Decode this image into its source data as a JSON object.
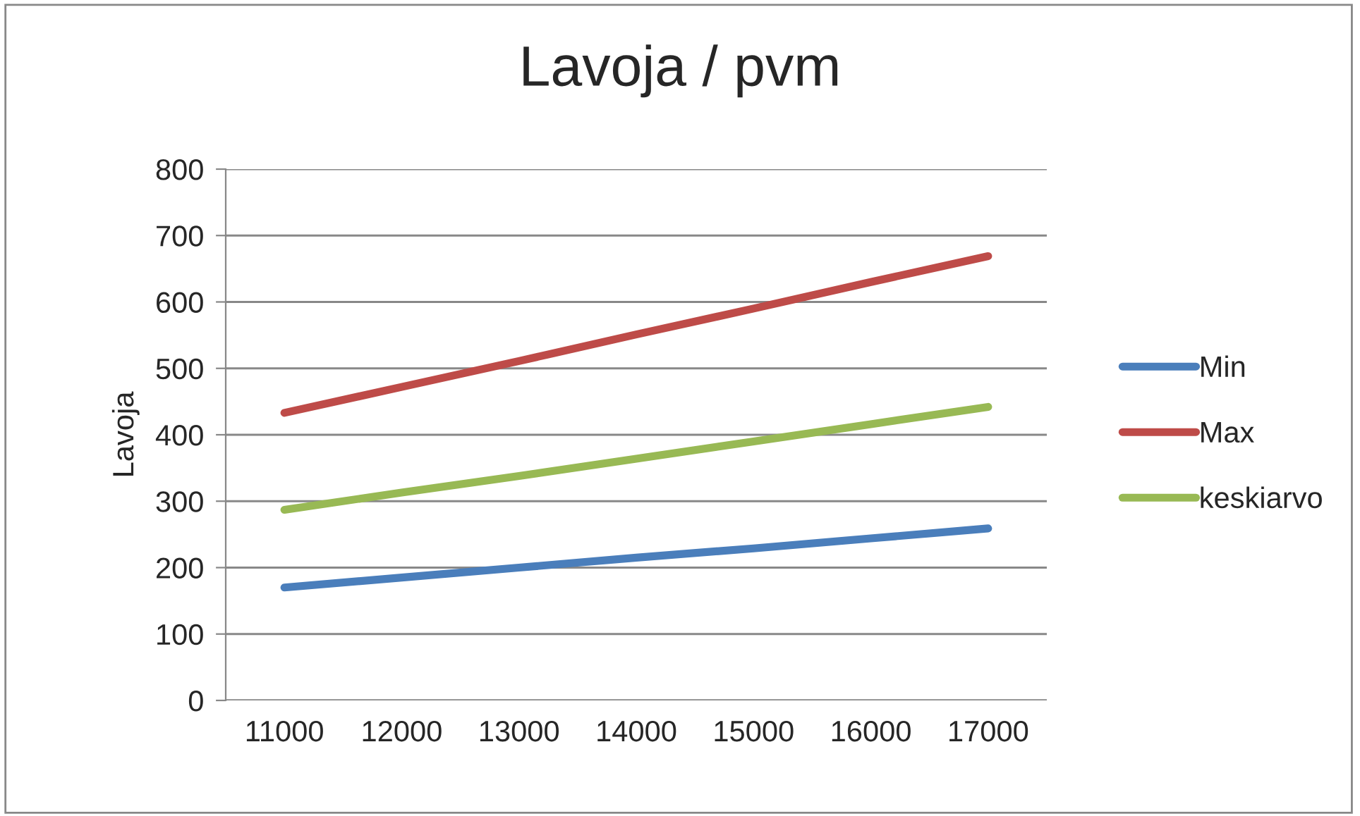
{
  "chart_data": {
    "type": "line",
    "title": "Lavoja / pvm",
    "ylabel": "Lavoja",
    "categories": [
      "11000",
      "12000",
      "13000",
      "14000",
      "15000",
      "16000",
      "17000"
    ],
    "series": [
      {
        "name": "Min",
        "color": "#4a7ebb",
        "values": [
          170,
          185,
          200,
          215,
          229,
          244,
          259
        ]
      },
      {
        "name": "Max",
        "color": "#be4b48",
        "values": [
          433,
          472,
          511,
          551,
          590,
          630,
          669
        ]
      },
      {
        "name": "keskiarvo",
        "color": "#98b954",
        "values": [
          287,
          313,
          338,
          364,
          390,
          416,
          442
        ]
      }
    ],
    "ylim": [
      0,
      800
    ],
    "yticks": [
      0,
      100,
      200,
      300,
      400,
      500,
      600,
      700,
      800
    ],
    "grid": "y",
    "legend": "right",
    "marker": "none",
    "line_style": "solid"
  }
}
